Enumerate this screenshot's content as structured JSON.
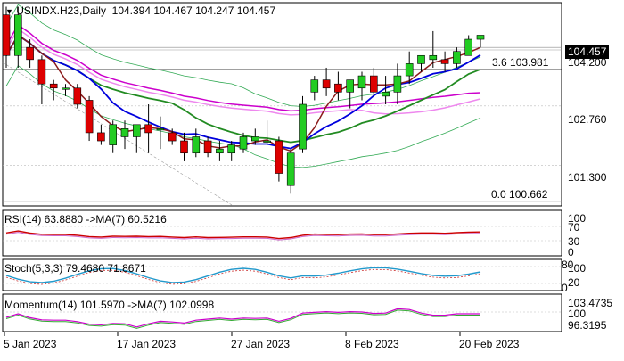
{
  "header": {
    "symbol": "USINDX.H23,Daily",
    "ohlc": "104.394 104.467 104.247 104.457",
    "fib_upper": "3.6 103.981",
    "fib_lower": "0.0 100.662",
    "current_price": "104.457"
  },
  "price_axis": [
    "104.200",
    "102.760",
    "101.300"
  ],
  "panels": {
    "rsi": {
      "label": "RSI(14) 63.8880  ->MA(7) 60.5216",
      "ticks": [
        "100",
        "70",
        "30",
        "0"
      ]
    },
    "stoch": {
      "label": "Stoch(5,3,3) 79.4680 71.8671",
      "ticks": [
        "80",
        "100",
        "20",
        "0"
      ]
    },
    "momentum": {
      "label": "Momentum(14) 101.5970  ->MA(7) 102.0998",
      "ticks": [
        "103.4735",
        "100",
        "96.3195"
      ]
    }
  },
  "x_labels": [
    "5 Jan 2023",
    "17 Jan 2023",
    "27 Jan 2023",
    "8 Feb 2023",
    "20 Feb 2023"
  ],
  "colors": {
    "bull": "#22cc22",
    "bear": "#dd0000",
    "ma_fast": "#8b1a1a",
    "ma_blue": "#0000dd",
    "ma_green": "#228b22",
    "ma_magenta": "#cc00cc",
    "ma_pink": "#ee88ee",
    "bands": "#33aa55",
    "rsi": "#cc0000",
    "stoch": "#2299cc",
    "momentum": "#cc00cc"
  },
  "chart_data": {
    "type": "candlestick",
    "ylim": [
      100.3,
      105.3
    ],
    "candles": [
      {
        "o": 105.0,
        "h": 105.2,
        "l": 103.7,
        "c": 104.0
      },
      {
        "o": 104.0,
        "h": 105.2,
        "l": 103.7,
        "c": 105.0
      },
      {
        "o": 104.2,
        "h": 104.4,
        "l": 103.7,
        "c": 103.9
      },
      {
        "o": 103.9,
        "h": 104.0,
        "l": 102.8,
        "c": 103.3
      },
      {
        "o": 103.3,
        "h": 103.4,
        "l": 102.9,
        "c": 103.2
      },
      {
        "o": 103.2,
        "h": 103.3,
        "l": 103.0,
        "c": 103.2
      },
      {
        "o": 103.2,
        "h": 103.3,
        "l": 102.7,
        "c": 102.8
      },
      {
        "o": 102.9,
        "h": 103.0,
        "l": 101.9,
        "c": 102.1
      },
      {
        "o": 102.1,
        "h": 102.3,
        "l": 101.8,
        "c": 101.9
      },
      {
        "o": 101.8,
        "h": 102.4,
        "l": 101.6,
        "c": 102.3
      },
      {
        "o": 102.0,
        "h": 102.4,
        "l": 101.7,
        "c": 102.2
      },
      {
        "o": 102.0,
        "h": 102.3,
        "l": 101.6,
        "c": 102.3
      },
      {
        "o": 102.3,
        "h": 102.8,
        "l": 101.6,
        "c": 102.1
      },
      {
        "o": 102.2,
        "h": 102.5,
        "l": 101.7,
        "c": 102.2
      },
      {
        "o": 102.1,
        "h": 102.2,
        "l": 101.8,
        "c": 101.9
      },
      {
        "o": 101.9,
        "h": 102.1,
        "l": 101.4,
        "c": 101.6
      },
      {
        "o": 101.6,
        "h": 102.2,
        "l": 101.5,
        "c": 102.0
      },
      {
        "o": 101.9,
        "h": 102.0,
        "l": 101.5,
        "c": 101.6
      },
      {
        "o": 101.6,
        "h": 101.9,
        "l": 101.4,
        "c": 101.7
      },
      {
        "o": 101.6,
        "h": 101.9,
        "l": 101.4,
        "c": 101.8
      },
      {
        "o": 101.7,
        "h": 102.1,
        "l": 101.6,
        "c": 102.0
      },
      {
        "o": 101.9,
        "h": 102.2,
        "l": 101.8,
        "c": 102.0
      },
      {
        "o": 101.9,
        "h": 102.4,
        "l": 101.8,
        "c": 101.9
      },
      {
        "o": 101.9,
        "h": 102.0,
        "l": 100.9,
        "c": 101.1
      },
      {
        "o": 100.8,
        "h": 101.7,
        "l": 100.6,
        "c": 101.6
      },
      {
        "o": 101.7,
        "h": 103.0,
        "l": 101.6,
        "c": 102.8
      },
      {
        "o": 103.1,
        "h": 103.5,
        "l": 102.9,
        "c": 103.4
      },
      {
        "o": 103.4,
        "h": 103.7,
        "l": 103.0,
        "c": 103.2
      },
      {
        "o": 103.3,
        "h": 103.6,
        "l": 102.9,
        "c": 103.1
      },
      {
        "o": 103.1,
        "h": 103.4,
        "l": 102.7,
        "c": 103.4
      },
      {
        "o": 103.2,
        "h": 103.6,
        "l": 102.9,
        "c": 103.5
      },
      {
        "o": 103.5,
        "h": 103.7,
        "l": 103.0,
        "c": 103.1
      },
      {
        "o": 103.0,
        "h": 103.5,
        "l": 102.8,
        "c": 103.1
      },
      {
        "o": 103.1,
        "h": 103.8,
        "l": 102.8,
        "c": 103.5
      },
      {
        "o": 103.5,
        "h": 104.1,
        "l": 103.3,
        "c": 103.8
      },
      {
        "o": 103.8,
        "h": 104.0,
        "l": 103.6,
        "c": 104.0
      },
      {
        "o": 103.9,
        "h": 104.6,
        "l": 103.7,
        "c": 104.0
      },
      {
        "o": 103.9,
        "h": 104.1,
        "l": 103.6,
        "c": 103.8
      },
      {
        "o": 103.8,
        "h": 104.2,
        "l": 103.7,
        "c": 104.1
      },
      {
        "o": 104.0,
        "h": 104.5,
        "l": 104.0,
        "c": 104.4
      },
      {
        "o": 104.4,
        "h": 104.5,
        "l": 104.2,
        "c": 104.5
      }
    ]
  }
}
